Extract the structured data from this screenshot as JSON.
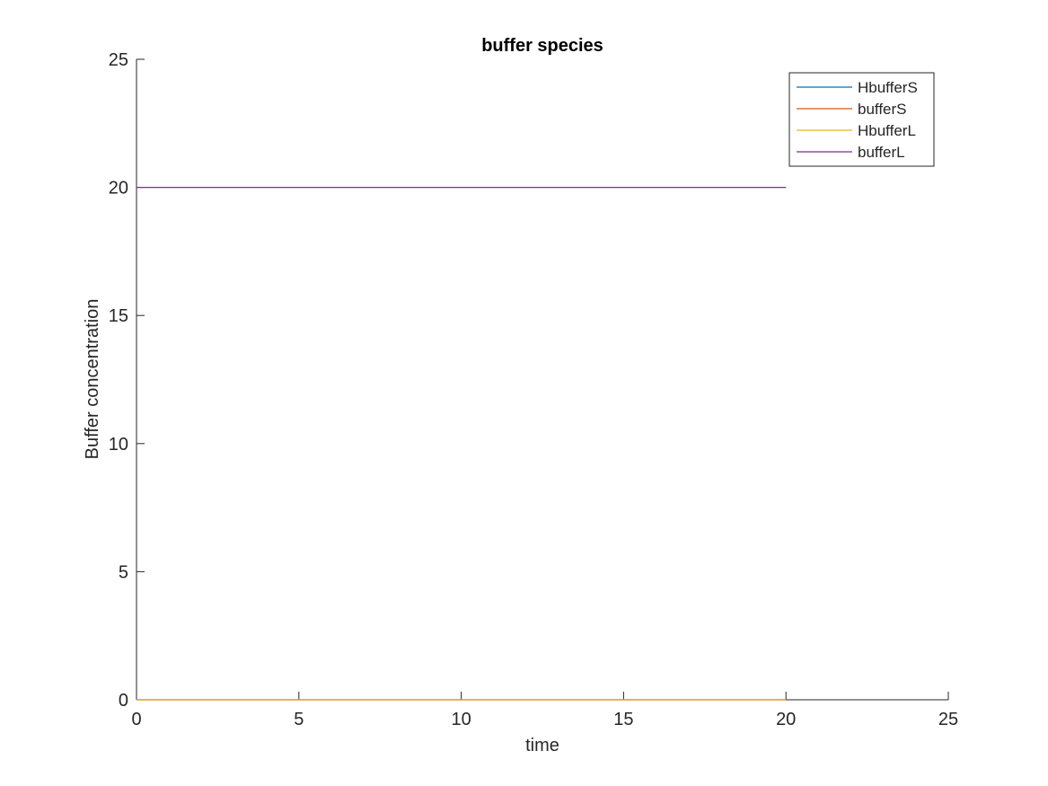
{
  "chart_data": {
    "type": "line",
    "title": "buffer species",
    "xlabel": "time",
    "ylabel": "Buffer concentration",
    "xlim": [
      0,
      25
    ],
    "ylim": [
      0,
      25
    ],
    "xticks": [
      "0",
      "5",
      "10",
      "15",
      "20",
      "25"
    ],
    "yticks": [
      "0",
      "5",
      "10",
      "15",
      "20",
      "25"
    ],
    "grid": false,
    "legend_position": "top-right",
    "series": [
      {
        "name": "HbufferS",
        "color": "#0072bd",
        "x": [
          0,
          20
        ],
        "y": [
          0,
          0
        ]
      },
      {
        "name": "bufferS",
        "color": "#d95319",
        "x": [
          0,
          20
        ],
        "y": [
          0,
          0
        ]
      },
      {
        "name": "HbufferL",
        "color": "#edb120",
        "x": [
          0,
          20
        ],
        "y": [
          0,
          0
        ]
      },
      {
        "name": "bufferL",
        "color": "#7e2f8e",
        "x": [
          0,
          20
        ],
        "y": [
          20,
          20
        ]
      }
    ]
  }
}
